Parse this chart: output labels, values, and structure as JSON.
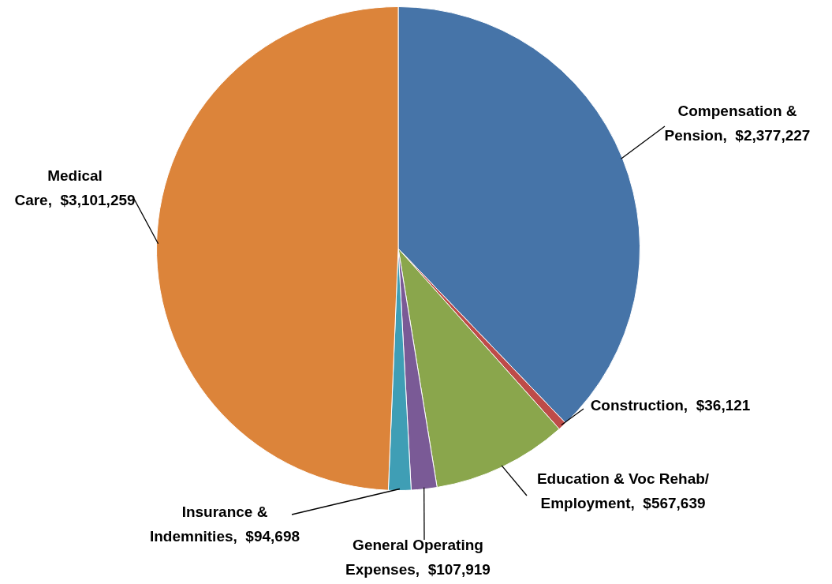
{
  "chart_data": {
    "type": "pie",
    "categories": [
      "Compensation & Pension",
      "Construction",
      "Education & Voc Rehab/ Employment",
      "General Operating Expenses",
      "Insurance & Indemnities",
      "Medical Care"
    ],
    "values": [
      2377227,
      36121,
      567639,
      107919,
      94698,
      3101259
    ],
    "value_labels": [
      "$2,377,227",
      "$36,121",
      "$567,639",
      "$107,919",
      "$94,698",
      "$3,101,259"
    ],
    "colors": [
      "#4674a8",
      "#be4b48",
      "#8aa64c",
      "#7a5a96",
      "#3f9eb5",
      "#dc843a"
    ],
    "legend": false
  }
}
